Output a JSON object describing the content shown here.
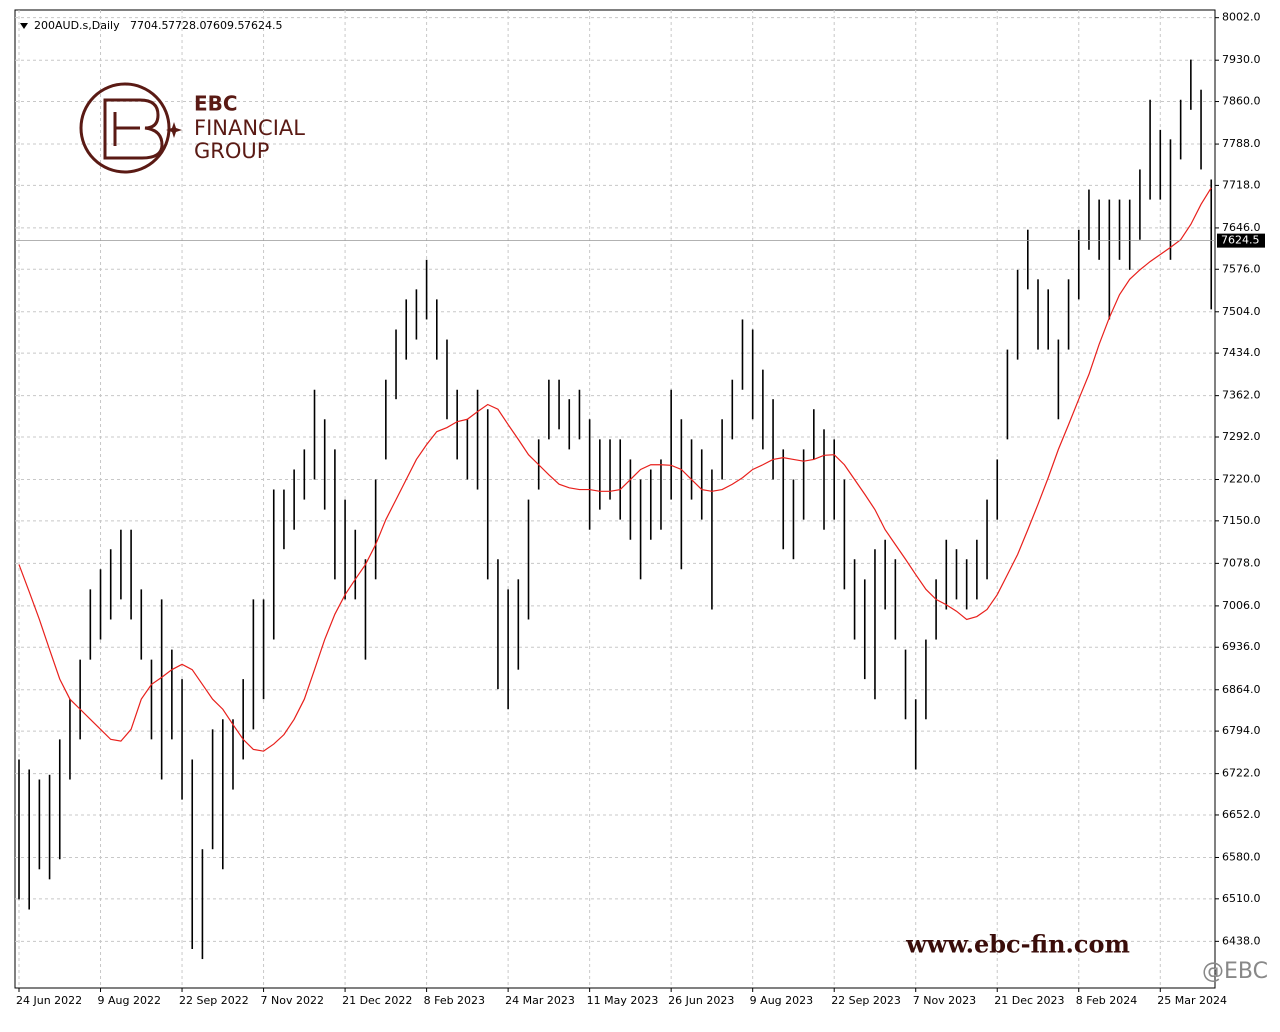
{
  "chart_data": {
    "type": "hilo",
    "title": "200AUD.s,Daily",
    "header_values": [
      "7704.5",
      "7728.0",
      "7609.5",
      "7624.5"
    ],
    "logo": {
      "line1": "EBC",
      "line2": "FINANCIAL",
      "line3": "GROUP"
    },
    "watermark": "www.ebc-fin.com",
    "handle": "@EBC",
    "color": "#000000",
    "categories": [
      "24 Jun 2022",
      null,
      null,
      null,
      null,
      null,
      null,
      null,
      "9 Aug 2022",
      null,
      null,
      null,
      null,
      null,
      null,
      null,
      "22 Sep 2022",
      null,
      null,
      null,
      null,
      null,
      null,
      null,
      "7 Nov 2022",
      null,
      null,
      null,
      null,
      null,
      null,
      null,
      "21 Dec 2022",
      null,
      null,
      null,
      null,
      null,
      null,
      null,
      "8 Feb 2023",
      null,
      null,
      null,
      null,
      null,
      null,
      null,
      "24 Mar 2023",
      null,
      null,
      null,
      null,
      null,
      null,
      null,
      "11 May 2023",
      null,
      null,
      null,
      null,
      null,
      null,
      null,
      "26 Jun 2023",
      null,
      null,
      null,
      null,
      null,
      null,
      null,
      "9 Aug 2023",
      null,
      null,
      null,
      null,
      null,
      null,
      null,
      "22 Sep 2023",
      null,
      null,
      null,
      null,
      null,
      null,
      null,
      "7 Nov 2023",
      null,
      null,
      null,
      null,
      null,
      null,
      null,
      "21 Dec 2023",
      null,
      null,
      null,
      null,
      null,
      null,
      null,
      "8 Feb 2024",
      null,
      null,
      null,
      null,
      null,
      null,
      null,
      "25 Mar 2024",
      null,
      null,
      null,
      null,
      null
    ],
    "highs": [
      6746,
      6729,
      6712,
      6720,
      6780,
      6848,
      6915,
      7034,
      7068,
      7102,
      7135,
      7135,
      7034,
      6915,
      7017,
      6932,
      6882,
      6746,
      6594,
      6797,
      6814,
      6814,
      6882,
      7017,
      7017,
      7203,
      7203,
      7237,
      7271,
      7372,
      7322,
      7271,
      7186,
      7135,
      7085,
      7220,
      7389,
      7474,
      7525,
      7542,
      7592,
      7525,
      7457,
      7372,
      7322,
      7372,
      7339,
      7085,
      7034,
      7051,
      7186,
      7288,
      7389,
      7389,
      7356,
      7372,
      7322,
      7288,
      7288,
      7288,
      7254,
      7220,
      7237,
      7254,
      7372,
      7322,
      7288,
      7271,
      7237,
      7322,
      7389,
      7491,
      7474,
      7406,
      7356,
      7271,
      7220,
      7271,
      7339,
      7305,
      7288,
      7220,
      7085,
      7051,
      7102,
      7118,
      7085,
      6932,
      6848,
      6949,
      7051,
      7118,
      7102,
      7085,
      7118,
      7186,
      7254,
      7440,
      7575,
      7643,
      7559,
      7542,
      7457,
      7559,
      7643,
      7711,
      7694,
      7694,
      7694,
      7694,
      7745,
      7863,
      7812,
      7796,
      7863,
      7931,
      7880,
      7728
    ],
    "lows": [
      6509,
      6492,
      6560,
      6543,
      6577,
      6712,
      6780,
      6915,
      6949,
      6983,
      7017,
      6983,
      6915,
      6780,
      6712,
      6780,
      6678,
      6425,
      6408,
      6594,
      6560,
      6695,
      6746,
      6797,
      6848,
      6949,
      7102,
      7135,
      7186,
      7220,
      7169,
      7051,
      7017,
      7017,
      6915,
      7051,
      7254,
      7356,
      7423,
      7457,
      7491,
      7423,
      7322,
      7254,
      7220,
      7203,
      7051,
      6865,
      6831,
      6898,
      6983,
      7203,
      7288,
      7305,
      7271,
      7288,
      7135,
      7169,
      7186,
      7152,
      7118,
      7051,
      7118,
      7135,
      7186,
      7068,
      7186,
      7152,
      7000,
      7220,
      7288,
      7372,
      7322,
      7271,
      7220,
      7102,
      7085,
      7152,
      7254,
      7135,
      7152,
      7034,
      6949,
      6882,
      6848,
      7000,
      6949,
      6814,
      6729,
      6814,
      6949,
      7000,
      7017,
      7000,
      7017,
      7051,
      7152,
      7288,
      7423,
      7542,
      7440,
      7440,
      7322,
      7440,
      7525,
      7609,
      7592,
      7491,
      7592,
      7575,
      7626,
      7694,
      7694,
      7592,
      7762,
      7846,
      7745,
      7508
    ],
    "ma": {
      "color": "#e8201c",
      "values": [
        7076,
        7030,
        6983,
        6932,
        6882,
        6848,
        6831,
        6814,
        6797,
        6780,
        6777,
        6797,
        6848,
        6873,
        6885,
        6898,
        6907,
        6898,
        6873,
        6848,
        6831,
        6805,
        6780,
        6763,
        6760,
        6772,
        6788,
        6814,
        6848,
        6898,
        6949,
        6992,
        7025,
        7051,
        7076,
        7110,
        7152,
        7186,
        7220,
        7254,
        7279,
        7301,
        7308,
        7318,
        7322,
        7335,
        7347,
        7339,
        7313,
        7288,
        7262,
        7245,
        7228,
        7212,
        7206,
        7203,
        7203,
        7200,
        7200,
        7203,
        7220,
        7237,
        7245,
        7245,
        7244,
        7237,
        7220,
        7203,
        7200,
        7203,
        7212,
        7223,
        7237,
        7245,
        7254,
        7257,
        7254,
        7251,
        7254,
        7261,
        7262,
        7245,
        7220,
        7195,
        7169,
        7135,
        7110,
        7085,
        7059,
        7034,
        7017,
        7008,
        6997,
        6983,
        6988,
        7000,
        7025,
        7059,
        7093,
        7135,
        7178,
        7223,
        7271,
        7313,
        7356,
        7398,
        7449,
        7494,
        7533,
        7559,
        7575,
        7589,
        7601,
        7613,
        7626,
        7652,
        7686,
        7714
      ]
    },
    "last_price": 7624.5,
    "ylim": [
      6359,
      8015
    ],
    "yticks": [
      {
        "value": 8002,
        "label": "8002.0"
      },
      {
        "value": 7930,
        "label": "7930.0"
      },
      {
        "value": 7860,
        "label": "7860.0"
      },
      {
        "value": 7788,
        "label": "7788.0"
      },
      {
        "value": 7718,
        "label": "7718.0"
      },
      {
        "value": 7646,
        "label": "7646.0"
      },
      {
        "value": 7576,
        "label": "7576.0"
      },
      {
        "value": 7504,
        "label": "7504.0"
      },
      {
        "value": 7434,
        "label": "7434.0"
      },
      {
        "value": 7362,
        "label": "7362.0"
      },
      {
        "value": 7292,
        "label": "7292.0"
      },
      {
        "value": 7220,
        "label": "7220.0"
      },
      {
        "value": 7150,
        "label": "7150.0"
      },
      {
        "value": 7078,
        "label": "7078.0"
      },
      {
        "value": 7006,
        "label": "7006.0"
      },
      {
        "value": 6936,
        "label": "6936.0"
      },
      {
        "value": 6864,
        "label": "6864.0"
      },
      {
        "value": 6794,
        "label": "6794.0"
      },
      {
        "value": 6722,
        "label": "6722.0"
      },
      {
        "value": 6652,
        "label": "6652.0"
      },
      {
        "value": 6580,
        "label": "6580.0"
      },
      {
        "value": 6510,
        "label": "6510.0"
      },
      {
        "value": 6438,
        "label": "6438.0"
      }
    ],
    "grid": true
  }
}
